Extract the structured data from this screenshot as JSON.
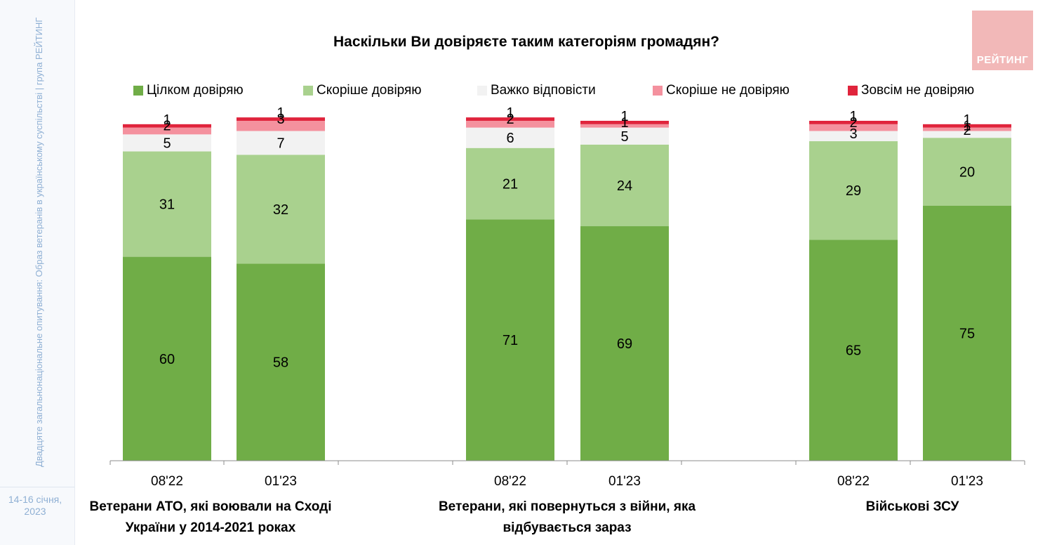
{
  "sidebar": {
    "vertical_text": "Двадцяте загальнонаціональне опитування: Образ ветеранів в українському суспільстві | група РЕЙТИНГ",
    "date": "14-16 січня, 2023"
  },
  "logo": {
    "text": "РЕЙТИНГ",
    "color": "#f2b8b8"
  },
  "colors": {
    "fully_trust": "#70ad47",
    "rather_trust": "#a9d18e",
    "hard_to_say": "#f2f2f2",
    "rather_not_trust": "#f4919e",
    "not_trust_at_all": "#e0243c"
  },
  "chart_data": {
    "type": "bar",
    "stacked": true,
    "title": "Наскільки Ви довіряєте таким категоріям громадян?",
    "legend": [
      "Цілком довіряю",
      "Скоріше довіряю",
      "Важко відповісти",
      "Скоріше не довіряю",
      "Зовсім не довіряю"
    ],
    "legend_position": "top",
    "groups": [
      "Ветерани АТО, які воювали на Сході України у 2014-2021 роках",
      "Ветерани, які повернуться з війни, яка відбувається зараз",
      "Військові ЗСУ"
    ],
    "categories": [
      "08'22",
      "01'23",
      "08'22",
      "01'23",
      "08'22",
      "01'23"
    ],
    "series": [
      {
        "name": "Цілком довіряю",
        "values": [
          60,
          58,
          71,
          69,
          65,
          75
        ]
      },
      {
        "name": "Скоріше довіряю",
        "values": [
          31,
          32,
          21,
          24,
          29,
          20
        ]
      },
      {
        "name": "Важко відповісти",
        "values": [
          5,
          7,
          6,
          5,
          3,
          2
        ]
      },
      {
        "name": "Скоріше не довіряю",
        "values": [
          2,
          3,
          2,
          1,
          2,
          1
        ]
      },
      {
        "name": "Зовсім не довіряю",
        "values": [
          1,
          1,
          1,
          1,
          1,
          1
        ]
      }
    ],
    "ylim": [
      0,
      100
    ],
    "grid": false
  }
}
